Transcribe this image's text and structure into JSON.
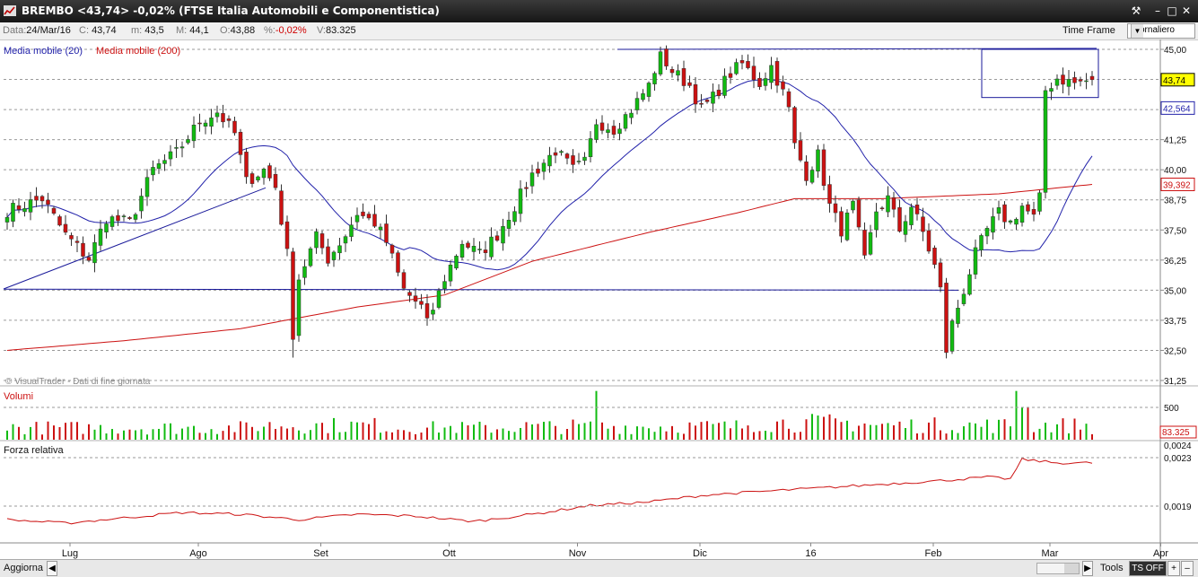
{
  "window": {
    "title": "BREMBO <43,74> -0,02%  (FTSE Italia Automobili e Componentistica)",
    "buttons": {
      "tools": "⚒",
      "minimize": "–",
      "maximize": "□",
      "close": "✕"
    }
  },
  "infobar": {
    "date_label": "Data:",
    "date": "24/Mar/16",
    "close_label": "C:",
    "close": "43,74",
    "low_label": "m:",
    "low": "43,5",
    "high_label": "M:",
    "high": "44,1",
    "open_label": "O:",
    "open": "43,88",
    "pct_label": "%:",
    "pct": "-0,02%",
    "vol_label": "V:",
    "vol": "83.325",
    "timeframe_label": "Time Frame",
    "timeframe_value": "Giornaliero"
  },
  "colors": {
    "up": "#11bb11",
    "down": "#cc1111",
    "ma20": "#2222aa",
    "ma200": "#cc1111",
    "trend": "#1a1a9a",
    "last_price_bg": "#ffff00"
  },
  "legend": {
    "ma20": "Media mobile (20)",
    "ma200": "Media mobile (200)"
  },
  "watermark": "© VisualTrader - Dati di fine giornata",
  "chart_data": {
    "type": "candlestick",
    "price_axis": {
      "min": 31.25,
      "max": 45.0,
      "ticks": [
        "45,00",
        "43,75",
        "42,50",
        "41,25",
        "40,00",
        "38,75",
        "37,50",
        "36,25",
        "35,00",
        "33,75",
        "32,50",
        "31,25"
      ]
    },
    "last_price": "43,74",
    "ma20_last": "42,564",
    "ma200_last": "39,392",
    "x_ticks": [
      "Lug",
      "Ago",
      "Set",
      "Ott",
      "Nov",
      "Dic",
      "16",
      "Feb",
      "Mar",
      "Apr"
    ],
    "months": [
      {
        "label": "Lug",
        "start": 0,
        "end": 22,
        "from": 38.3,
        "to": 38.5,
        "vol": 0.5
      },
      {
        "label": "Ago",
        "start": 22,
        "end": 43,
        "from": 38.5,
        "to": 38.9,
        "vol": 0.5
      },
      {
        "label": "Set",
        "start": 43,
        "end": 65,
        "from": 38.9,
        "to": 34.2,
        "vol": 0.6
      },
      {
        "label": "Ott",
        "start": 65,
        "end": 87,
        "from": 34.2,
        "to": 40.2,
        "vol": 0.5
      },
      {
        "label": "Nov",
        "start": 87,
        "end": 108,
        "from": 40.2,
        "to": 44.1,
        "vol": 0.55
      },
      {
        "label": "Dic",
        "start": 108,
        "end": 127,
        "from": 44.1,
        "to": 42.6,
        "vol": 0.55
      },
      {
        "label": "16",
        "start": 127,
        "end": 148,
        "from": 42.6,
        "to": 34.0,
        "vol": 0.7
      },
      {
        "label": "Feb",
        "start": 148,
        "end": 168,
        "from": 34.0,
        "to": 38.6,
        "vol": 0.6
      },
      {
        "label": "Mar",
        "start": 168,
        "end": 186,
        "from": 38.6,
        "to": 43.74,
        "vol": 0.6
      }
    ],
    "key_closes": [
      [
        0,
        38.3
      ],
      [
        6,
        38.8
      ],
      [
        10,
        37.3
      ],
      [
        14,
        36.3
      ],
      [
        17,
        38.0
      ],
      [
        21,
        37.8
      ],
      [
        25,
        40.0
      ],
      [
        29,
        40.7
      ],
      [
        33,
        42.0
      ],
      [
        36,
        42.4
      ],
      [
        39,
        41.5
      ],
      [
        41,
        39.5
      ],
      [
        44,
        40.0
      ],
      [
        46,
        39.3
      ],
      [
        48,
        36.5
      ],
      [
        49,
        33.2
      ],
      [
        50,
        35.5
      ],
      [
        53,
        37.2
      ],
      [
        55,
        36.3
      ],
      [
        58,
        37.3
      ],
      [
        60,
        38.2
      ],
      [
        63,
        37.8
      ],
      [
        65,
        37.0
      ],
      [
        68,
        35.0
      ],
      [
        71,
        34.3
      ],
      [
        72,
        33.6
      ],
      [
        75,
        35.5
      ],
      [
        78,
        37.0
      ],
      [
        81,
        36.5
      ],
      [
        84,
        37.3
      ],
      [
        87,
        38.5
      ],
      [
        90,
        39.8
      ],
      [
        94,
        40.8
      ],
      [
        97,
        40.0
      ],
      [
        99,
        40.3
      ],
      [
        101,
        42.0
      ],
      [
        104,
        41.7
      ],
      [
        107,
        42.5
      ],
      [
        110,
        43.5
      ],
      [
        112,
        44.8
      ],
      [
        114,
        44.1
      ],
      [
        117,
        43.5
      ],
      [
        119,
        42.5
      ],
      [
        121,
        43.0
      ],
      [
        124,
        44.0
      ],
      [
        126,
        44.4
      ],
      [
        129,
        43.6
      ],
      [
        131,
        44.3
      ],
      [
        133,
        43.2
      ],
      [
        134,
        42.5
      ],
      [
        135,
        41.0
      ],
      [
        137,
        39.8
      ],
      [
        139,
        40.6
      ],
      [
        141,
        38.5
      ],
      [
        143,
        37.5
      ],
      [
        145,
        38.5
      ],
      [
        147,
        36.2
      ],
      [
        149,
        38.3
      ],
      [
        151,
        38.8
      ],
      [
        153,
        37.5
      ],
      [
        155,
        38.5
      ],
      [
        157,
        37.4
      ],
      [
        159,
        36.0
      ],
      [
        160,
        35.0
      ],
      [
        161,
        32.5
      ],
      [
        162,
        33.6
      ],
      [
        164,
        35.0
      ],
      [
        166,
        36.5
      ],
      [
        168,
        37.5
      ],
      [
        170,
        38.2
      ],
      [
        172,
        37.8
      ],
      [
        174,
        38.5
      ],
      [
        176,
        38.0
      ],
      [
        177,
        38.8
      ],
      [
        178,
        43.3
      ],
      [
        180,
        43.8
      ],
      [
        183,
        43.6
      ],
      [
        186,
        43.74
      ]
    ],
    "ma200_path": [
      [
        0,
        32.5
      ],
      [
        20,
        32.9
      ],
      [
        40,
        33.4
      ],
      [
        60,
        34.3
      ],
      [
        75,
        34.8
      ],
      [
        90,
        36.2
      ],
      [
        110,
        37.4
      ],
      [
        125,
        38.2
      ],
      [
        135,
        38.8
      ],
      [
        150,
        38.8
      ],
      [
        170,
        39.0
      ],
      [
        186,
        39.392
      ]
    ],
    "relative_strength": {
      "axis_labels": [
        "0,0024",
        "0,0023",
        "0,0019"
      ],
      "values": [
        [
          0,
          -0.2
        ],
        [
          10,
          -0.4
        ],
        [
          20,
          -0.1
        ],
        [
          30,
          0.2
        ],
        [
          40,
          0.1
        ],
        [
          50,
          -0.2
        ],
        [
          60,
          0.1
        ],
        [
          70,
          0.0
        ],
        [
          80,
          -0.3
        ],
        [
          90,
          0.1
        ],
        [
          100,
          0.6
        ],
        [
          110,
          0.8
        ],
        [
          120,
          1.2
        ],
        [
          130,
          1.4
        ],
        [
          140,
          1.6
        ],
        [
          150,
          1.8
        ],
        [
          160,
          2.0
        ],
        [
          168,
          2.2
        ],
        [
          172,
          2.1
        ],
        [
          174,
          3.2
        ],
        [
          180,
          3.0
        ],
        [
          186,
          3.0
        ]
      ]
    },
    "volume": {
      "label": "Volumi",
      "axis_label": "500",
      "last": "83.325"
    }
  },
  "panels": {
    "volume_title": "Volumi",
    "rs_title": "Forza relativa"
  },
  "bottombar": {
    "refresh": "Aggiorna",
    "tools": "Tools",
    "ts": "TS OFF"
  }
}
